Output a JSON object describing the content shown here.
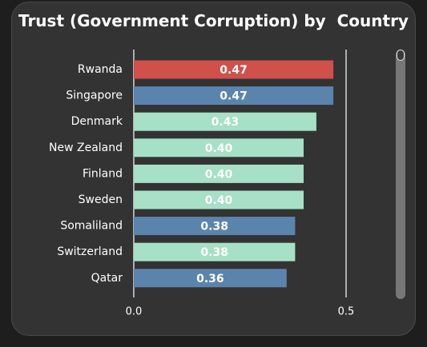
{
  "chart_data": {
    "type": "bar",
    "orientation": "horizontal",
    "title": "Trust (Government Corruption) by  Country",
    "categories": [
      "Rwanda",
      "Singapore",
      "Denmark",
      "New Zealand",
      "Finland",
      "Sweden",
      "Somaliland",
      "Switzerland",
      "Qatar"
    ],
    "values": [
      0.47,
      0.47,
      0.43,
      0.4,
      0.4,
      0.4,
      0.38,
      0.38,
      0.36
    ],
    "value_labels": [
      "0.47",
      "0.47",
      "0.43",
      "0.40",
      "0.40",
      "0.40",
      "0.38",
      "0.38",
      "0.36"
    ],
    "bar_colors": [
      "#d0504a",
      "#5b84ad",
      "#a6e0c6",
      "#a6e0c6",
      "#a6e0c6",
      "#a6e0c6",
      "#5b84ad",
      "#a6e0c6",
      "#5b84ad"
    ],
    "xlim": [
      0,
      0.5
    ],
    "xticks": [
      0,
      0.5
    ],
    "xtick_labels": [
      "0.0",
      "0.5"
    ],
    "grid": false
  },
  "colors": {
    "background": "#1e1e1e",
    "card": "#333333",
    "text": "#ffffff",
    "reference_line": "#ffffff"
  }
}
